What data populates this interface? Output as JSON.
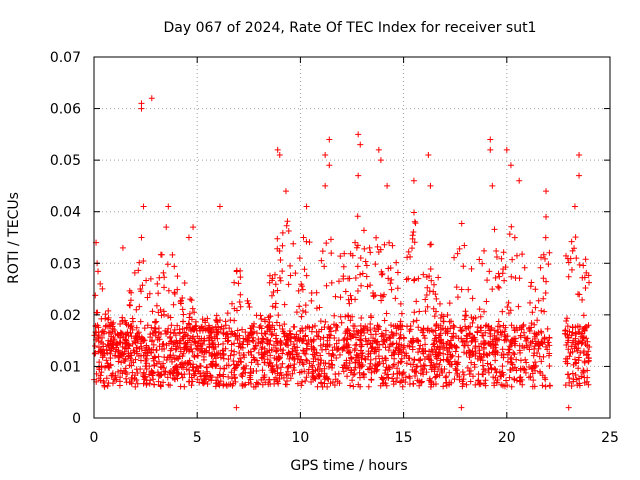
{
  "chart_data": {
    "type": "scatter",
    "title": "Day 067 of 2024, Rate Of TEC Index for receiver sut1",
    "xlabel": "GPS time / hours",
    "ylabel": "ROTI / TECUs",
    "xlim": [
      0,
      25
    ],
    "ylim": [
      0,
      0.07
    ],
    "x_ticks": [
      0,
      5,
      10,
      15,
      20,
      25
    ],
    "x_tick_labels": [
      "0",
      "5",
      "10",
      "15",
      "20",
      "25"
    ],
    "y_ticks": [
      0,
      0.01,
      0.02,
      0.03,
      0.04,
      0.05,
      0.06,
      0.07
    ],
    "y_tick_labels": [
      "0",
      "0.01",
      "0.02",
      "0.03",
      "0.04",
      "0.05",
      "0.06",
      "0.07"
    ],
    "grid": true,
    "marker": "+",
    "series": [
      {
        "name": "ROTI",
        "color": "#ff0000",
        "band": {
          "x_range": [
            0,
            24.0
          ],
          "gap_hours": [
            22.1,
            22.8
          ],
          "baseline_typical": 0.012,
          "baseline_min": 0.002
        },
        "points": [
          {
            "x": 0.1,
            "y": 0.034
          },
          {
            "x": 0.15,
            "y": 0.03
          },
          {
            "x": 0.3,
            "y": 0.026
          },
          {
            "x": 1.4,
            "y": 0.033
          },
          {
            "x": 2.3,
            "y": 0.035
          },
          {
            "x": 2.3,
            "y": 0.061
          },
          {
            "x": 2.3,
            "y": 0.06
          },
          {
            "x": 2.4,
            "y": 0.041
          },
          {
            "x": 2.8,
            "y": 0.062
          },
          {
            "x": 3.6,
            "y": 0.041
          },
          {
            "x": 3.5,
            "y": 0.037
          },
          {
            "x": 4.6,
            "y": 0.035
          },
          {
            "x": 4.8,
            "y": 0.037
          },
          {
            "x": 6.1,
            "y": 0.041
          },
          {
            "x": 8.9,
            "y": 0.052
          },
          {
            "x": 9.0,
            "y": 0.051
          },
          {
            "x": 9.3,
            "y": 0.044
          },
          {
            "x": 10.3,
            "y": 0.041
          },
          {
            "x": 11.2,
            "y": 0.051
          },
          {
            "x": 11.4,
            "y": 0.054
          },
          {
            "x": 11.4,
            "y": 0.049
          },
          {
            "x": 11.2,
            "y": 0.045
          },
          {
            "x": 12.8,
            "y": 0.055
          },
          {
            "x": 12.9,
            "y": 0.053
          },
          {
            "x": 12.8,
            "y": 0.047
          },
          {
            "x": 13.8,
            "y": 0.052
          },
          {
            "x": 13.9,
            "y": 0.05
          },
          {
            "x": 14.2,
            "y": 0.045
          },
          {
            "x": 15.5,
            "y": 0.046
          },
          {
            "x": 16.2,
            "y": 0.051
          },
          {
            "x": 16.3,
            "y": 0.045
          },
          {
            "x": 19.2,
            "y": 0.054
          },
          {
            "x": 19.2,
            "y": 0.052
          },
          {
            "x": 19.3,
            "y": 0.045
          },
          {
            "x": 20.0,
            "y": 0.052
          },
          {
            "x": 20.2,
            "y": 0.049
          },
          {
            "x": 20.6,
            "y": 0.046
          },
          {
            "x": 21.9,
            "y": 0.044
          },
          {
            "x": 21.9,
            "y": 0.039
          },
          {
            "x": 23.5,
            "y": 0.051
          },
          {
            "x": 23.5,
            "y": 0.047
          },
          {
            "x": 23.3,
            "y": 0.041
          },
          {
            "x": 23.0,
            "y": 0.002
          },
          {
            "x": 17.8,
            "y": 0.002
          },
          {
            "x": 6.9,
            "y": 0.002
          }
        ]
      }
    ]
  }
}
